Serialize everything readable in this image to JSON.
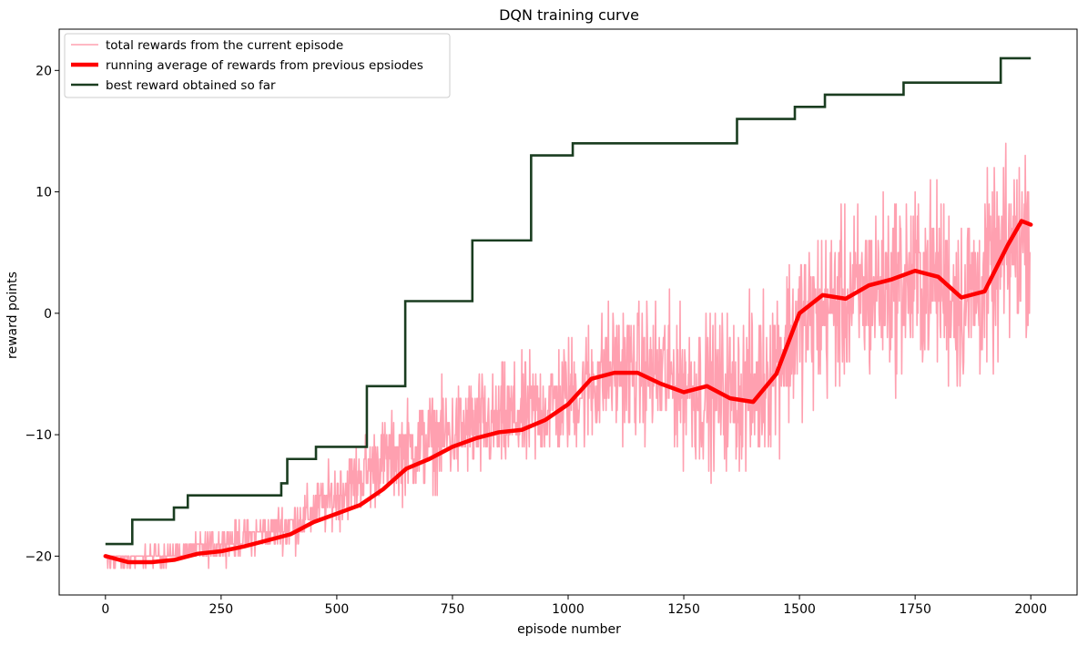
{
  "chart_data": {
    "type": "line",
    "title": "DQN training curve",
    "xlabel": "episode number",
    "ylabel": "reward points",
    "xlim": [
      -100,
      2100
    ],
    "ylim": [
      -23.2,
      23.4
    ],
    "xticks": [
      0,
      250,
      500,
      750,
      1000,
      1250,
      1500,
      1750,
      2000
    ],
    "xtick_labels": [
      "0",
      "250",
      "500",
      "750",
      "1000",
      "1250",
      "1500",
      "1750",
      "2000"
    ],
    "yticks": [
      -20,
      -10,
      0,
      10,
      20
    ],
    "ytick_labels": [
      "−20",
      "−10",
      "0",
      "10",
      "20"
    ],
    "grid": false,
    "legend_position": "top-left",
    "series": [
      {
        "name": "total rewards from the current episode",
        "color": "#ffa0b0",
        "style": "noisy",
        "n": 2000,
        "trend": [
          [
            0,
            -20.5
          ],
          [
            100,
            -20
          ],
          [
            200,
            -19.5
          ],
          [
            300,
            -18.5
          ],
          [
            400,
            -17.5
          ],
          [
            500,
            -15
          ],
          [
            600,
            -12
          ],
          [
            700,
            -10.5
          ],
          [
            800,
            -9.5
          ],
          [
            900,
            -8.5
          ],
          [
            1000,
            -7
          ],
          [
            1100,
            -4.5
          ],
          [
            1200,
            -5
          ],
          [
            1300,
            -6.5
          ],
          [
            1400,
            -6.5
          ],
          [
            1500,
            -1
          ],
          [
            1600,
            1
          ],
          [
            1700,
            2.5
          ],
          [
            1800,
            3
          ],
          [
            1850,
            1
          ],
          [
            1900,
            2.5
          ],
          [
            2000,
            7
          ]
        ],
        "spread": [
          [
            0,
            0.5
          ],
          [
            200,
            1
          ],
          [
            400,
            2
          ],
          [
            600,
            3.5
          ],
          [
            800,
            4.5
          ],
          [
            1000,
            5
          ],
          [
            1200,
            6
          ],
          [
            1400,
            7
          ],
          [
            1600,
            7.5
          ],
          [
            1800,
            8
          ],
          [
            2000,
            8
          ]
        ],
        "ymin": -21,
        "ymax": 21
      },
      {
        "name": "running average of rewards from previous epsiodes",
        "color": "#ff0000",
        "points": [
          [
            0,
            -20
          ],
          [
            50,
            -20.5
          ],
          [
            100,
            -20.5
          ],
          [
            150,
            -20.3
          ],
          [
            200,
            -19.8
          ],
          [
            250,
            -19.6
          ],
          [
            300,
            -19.2
          ],
          [
            350,
            -18.7
          ],
          [
            400,
            -18.2
          ],
          [
            450,
            -17.2
          ],
          [
            500,
            -16.5
          ],
          [
            550,
            -15.8
          ],
          [
            600,
            -14.5
          ],
          [
            650,
            -12.8
          ],
          [
            700,
            -12
          ],
          [
            750,
            -11
          ],
          [
            800,
            -10.3
          ],
          [
            850,
            -9.8
          ],
          [
            900,
            -9.6
          ],
          [
            950,
            -8.8
          ],
          [
            1000,
            -7.5
          ],
          [
            1050,
            -5.4
          ],
          [
            1100,
            -4.9
          ],
          [
            1150,
            -4.9
          ],
          [
            1200,
            -5.8
          ],
          [
            1250,
            -6.5
          ],
          [
            1300,
            -6
          ],
          [
            1350,
            -7
          ],
          [
            1400,
            -7.3
          ],
          [
            1450,
            -5
          ],
          [
            1500,
            0
          ],
          [
            1550,
            1.5
          ],
          [
            1600,
            1.2
          ],
          [
            1650,
            2.3
          ],
          [
            1700,
            2.8
          ],
          [
            1750,
            3.5
          ],
          [
            1800,
            3
          ],
          [
            1850,
            1.3
          ],
          [
            1900,
            1.8
          ],
          [
            1950,
            5.6
          ],
          [
            1980,
            7.6
          ],
          [
            2000,
            7.3
          ]
        ]
      },
      {
        "name": "best reward obtained so far",
        "color": "#1a3d20",
        "style": "step",
        "points": [
          [
            0,
            -19
          ],
          [
            58,
            -19
          ],
          [
            58,
            -17
          ],
          [
            148,
            -17
          ],
          [
            148,
            -16
          ],
          [
            178,
            -16
          ],
          [
            178,
            -15
          ],
          [
            380,
            -15
          ],
          [
            380,
            -14
          ],
          [
            393,
            -14
          ],
          [
            393,
            -12
          ],
          [
            455,
            -12
          ],
          [
            455,
            -11
          ],
          [
            565,
            -11
          ],
          [
            565,
            -6
          ],
          [
            648,
            -6
          ],
          [
            648,
            1
          ],
          [
            793,
            1
          ],
          [
            793,
            6
          ],
          [
            920,
            6
          ],
          [
            920,
            13
          ],
          [
            1010,
            13
          ],
          [
            1010,
            14
          ],
          [
            1365,
            14
          ],
          [
            1365,
            16
          ],
          [
            1490,
            16
          ],
          [
            1490,
            17
          ],
          [
            1555,
            17
          ],
          [
            1555,
            18
          ],
          [
            1725,
            18
          ],
          [
            1725,
            19
          ],
          [
            1935,
            19
          ],
          [
            1935,
            21
          ],
          [
            2000,
            21
          ]
        ]
      }
    ]
  }
}
